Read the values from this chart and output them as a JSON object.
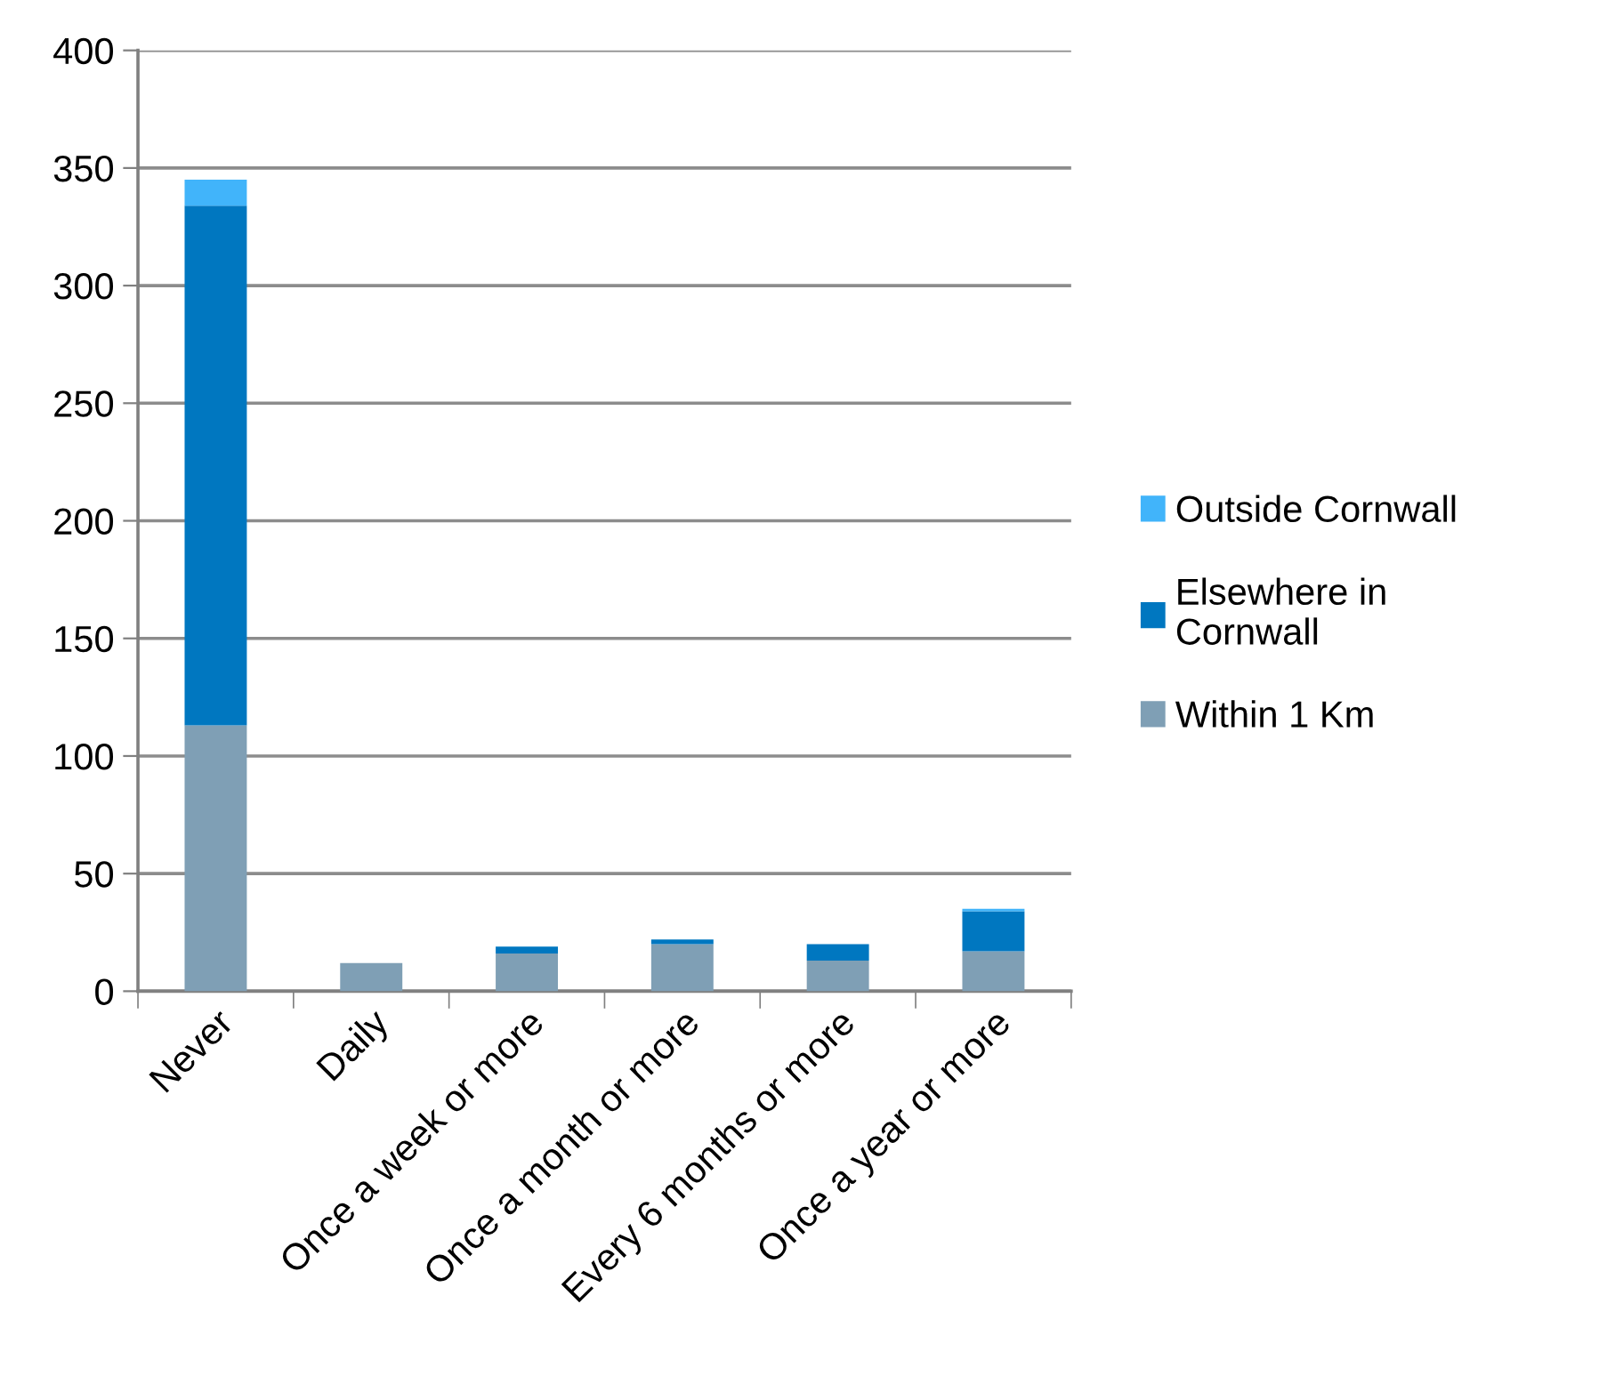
{
  "chart_data": {
    "type": "bar",
    "stacked": true,
    "categories": [
      "Never",
      "Daily",
      "Once a week or more",
      "Once a month or more",
      "Every 6 months or more",
      "Once a year or more"
    ],
    "series": [
      {
        "name": "Within 1 Km",
        "color": "#7f9fb5",
        "values": [
          113,
          12,
          16,
          20,
          13,
          17
        ]
      },
      {
        "name": "Elsewhere in Cornwall",
        "color": "#0077c0",
        "values": [
          221,
          0,
          3,
          2,
          7,
          17
        ]
      },
      {
        "name": "Outside Cornwall",
        "color": "#41b4fa",
        "values": [
          11,
          0,
          0,
          0,
          0,
          1
        ]
      }
    ],
    "ylim": [
      0,
      400
    ],
    "yticks": [
      0,
      50,
      100,
      150,
      200,
      250,
      300,
      350,
      400
    ],
    "grid": "y",
    "legend": "right"
  }
}
